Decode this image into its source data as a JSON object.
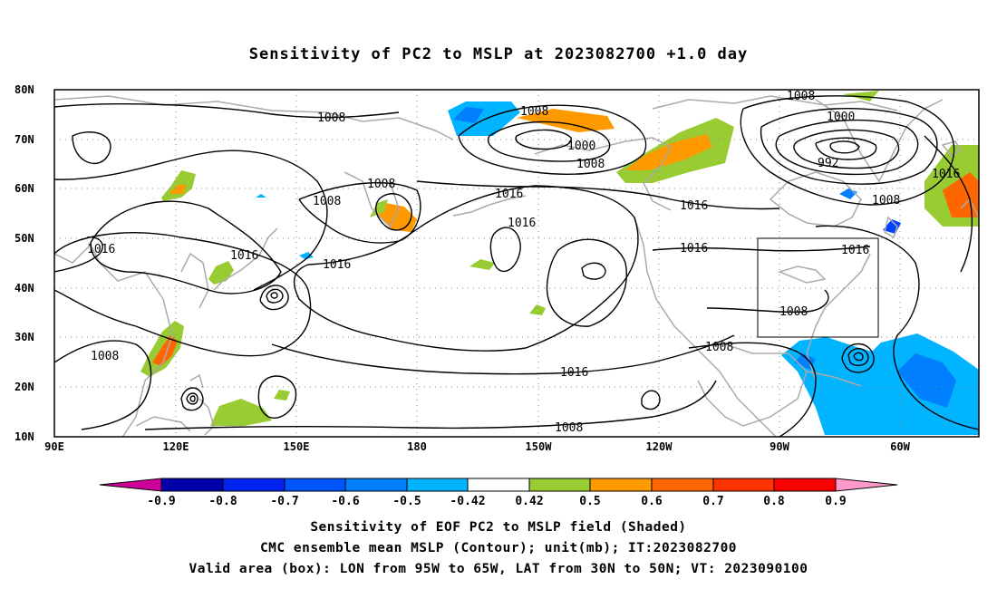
{
  "title": "Sensitivity of PC2 to MSLP at 2023082700 +1.0 day",
  "map": {
    "lat_labels": [
      "80N",
      "70N",
      "60N",
      "50N",
      "40N",
      "30N",
      "20N",
      "10N"
    ],
    "lon_labels": [
      "90E",
      "120E",
      "150E",
      "180",
      "150W",
      "120W",
      "90W",
      "60W"
    ],
    "contour_labels": [
      "1008",
      "1008",
      "1008",
      "1000",
      "1000",
      "992",
      "1016",
      "1008",
      "1016",
      "1016",
      "1016",
      "1016",
      "1016",
      "1016",
      "1008",
      "1016",
      "1008",
      "1008",
      "1016",
      "1008",
      "1008",
      "1008"
    ],
    "valid_box": {
      "lon_min": -95,
      "lon_max": -65,
      "lat_min": 30,
      "lat_max": 50
    },
    "colors": {
      "positive_low": "#99cc33",
      "positive_mid": "#ff9900",
      "positive_high": "#ff6600",
      "negative_low": "#00b4ff",
      "negative_mid": "#0080ff",
      "negative_high": "#0040ff",
      "coast": "#aaaaaa",
      "contour": "#000000"
    }
  },
  "colorbar": {
    "labels": [
      "-0.9",
      "-0.8",
      "-0.7",
      "-0.6",
      "-0.5",
      "-0.42",
      "0.42",
      "0.5",
      "0.6",
      "0.7",
      "0.8",
      "0.9"
    ],
    "colors": [
      "#cc0099",
      "#0000aa",
      "#0022ee",
      "#0055ff",
      "#0080ff",
      "#00b4ff",
      "#ffffff",
      "#99cc33",
      "#ff9900",
      "#ff6600",
      "#ff3300",
      "#ff0000",
      "#ff99cc"
    ]
  },
  "captions": {
    "line1": "Sensitivity of EOF PC2 to MSLP field (Shaded)",
    "line2": "CMC ensemble mean MSLP (Contour); unit(mb); IT:2023082700",
    "line3": "Valid area (box): LON from 95W to 65W, LAT from 30N to 50N; VT: 2023090100"
  }
}
